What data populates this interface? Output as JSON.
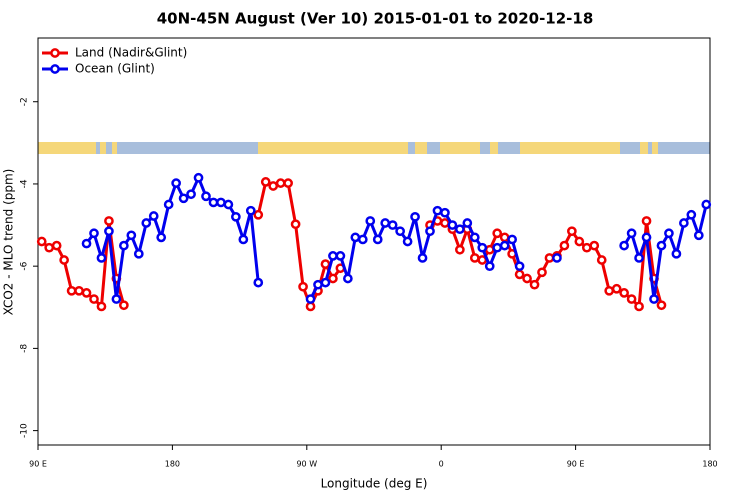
{
  "chart_data": {
    "type": "line",
    "title": "40N-45N August (Ver 10)   2015-01-01 to 2020-12-18",
    "x_label": "Longitude (deg E)",
    "y_label": "XCO2 - MLO trend (ppm)",
    "xlim": [
      90,
      540
    ],
    "xticks": [
      {
        "value": 90,
        "label": "90 E"
      },
      {
        "value": 180,
        "label": "180"
      },
      {
        "value": 270,
        "label": "90 W"
      },
      {
        "value": 360,
        "label": "0"
      },
      {
        "value": 450,
        "label": "90 E"
      },
      {
        "value": 540,
        "label": "180"
      }
    ],
    "ylim": [
      -10.35,
      -0.45
    ],
    "yticks": [
      -2,
      -4,
      -6,
      -8,
      -10
    ],
    "legend": "top-left",
    "series": [
      {
        "name": "Land (Nadir&Glint)",
        "color": "#ee0000",
        "x": [
          92.5,
          97.5,
          102.5,
          107.5,
          112.5,
          117.5,
          122.5,
          127.5,
          132.5,
          137.5,
          142.5,
          147.5,
          152.5,
          237.5,
          242.5,
          247.5,
          252.5,
          257.5,
          262.5,
          267.5,
          272.5,
          277.5,
          282.5,
          287.5,
          292.5,
          297.5,
          352.5,
          357.5,
          362.5,
          367.5,
          372.5,
          377.5,
          382.5,
          387.5,
          392.5,
          397.5,
          402.5,
          407.5,
          412.5,
          417.5,
          422.5,
          427.5,
          432.5,
          437.5,
          442.5,
          447.5,
          452.5,
          457.5,
          462.5,
          467.5,
          472.5,
          477.5,
          482.5,
          487.5,
          492.5,
          497.5,
          502.5,
          507.5
        ],
        "values": [
          -5.4,
          -5.55,
          -5.5,
          -5.85,
          -6.6,
          -6.6,
          -6.65,
          -6.8,
          -6.98,
          -4.9,
          -6.3,
          -6.95,
          null,
          -4.75,
          -3.95,
          -4.05,
          -3.98,
          -3.98,
          -4.98,
          -6.5,
          -6.98,
          -6.6,
          -5.95,
          -6.3,
          -6.05,
          null,
          -5.0,
          -4.9,
          -4.95,
          -5.1,
          -5.6,
          -5.1,
          -5.8,
          -5.85,
          -5.6,
          -5.2,
          -5.3,
          -5.7,
          -6.2,
          -6.3,
          -6.45,
          -6.15,
          -5.8,
          -5.75,
          -5.5,
          -5.15,
          -5.4,
          -5.55,
          -5.5,
          -5.85,
          -6.6,
          -6.55,
          -6.65,
          -6.8,
          -6.98,
          -4.9,
          -6.3,
          -6.95
        ]
      },
      {
        "name": "Ocean (Glint)",
        "color": "#0000ee",
        "x": [
          122.5,
          127.5,
          132.5,
          137.5,
          142.5,
          147.5,
          152.5,
          157.5,
          162.5,
          167.5,
          172.5,
          177.5,
          182.5,
          187.5,
          192.5,
          197.5,
          202.5,
          207.5,
          212.5,
          217.5,
          222.5,
          227.5,
          232.5,
          237.5,
          242.5,
          272.5,
          277.5,
          282.5,
          287.5,
          292.5,
          297.5,
          302.5,
          307.5,
          312.5,
          317.5,
          322.5,
          327.5,
          332.5,
          337.5,
          342.5,
          347.5,
          352.5,
          357.5,
          362.5,
          367.5,
          372.5,
          377.5,
          382.5,
          387.5,
          392.5,
          397.5,
          402.5,
          407.5,
          412.5,
          417.5,
          437.5,
          442.5,
          482.5,
          487.5,
          492.5,
          497.5,
          502.5,
          507.5,
          512.5,
          517.5,
          522.5,
          527.5,
          532.5,
          537.5
        ],
        "values": [
          -5.45,
          -5.2,
          -5.8,
          -5.15,
          -6.8,
          -5.5,
          -5.25,
          -5.7,
          -4.95,
          -4.78,
          -5.3,
          -4.5,
          -3.98,
          -4.35,
          -4.25,
          -3.85,
          -4.3,
          -4.45,
          -4.45,
          -4.5,
          -4.8,
          -5.35,
          -4.65,
          -6.4,
          null,
          -6.8,
          -6.45,
          -6.4,
          -5.75,
          -5.75,
          -6.3,
          -5.3,
          -5.35,
          -4.9,
          -5.35,
          -4.95,
          -5.0,
          -5.15,
          -5.4,
          -4.8,
          -5.8,
          -5.15,
          -4.65,
          -4.7,
          -5.0,
          -5.1,
          -4.95,
          -5.3,
          -5.55,
          -6.0,
          -5.55,
          -5.5,
          -5.35,
          -6.0,
          null,
          -5.8,
          null,
          -5.5,
          -5.2,
          -5.8,
          -5.3,
          -6.8,
          -5.5,
          -5.2,
          -5.7,
          -4.95,
          -4.75,
          -5.25,
          -4.5
        ]
      }
    ]
  }
}
